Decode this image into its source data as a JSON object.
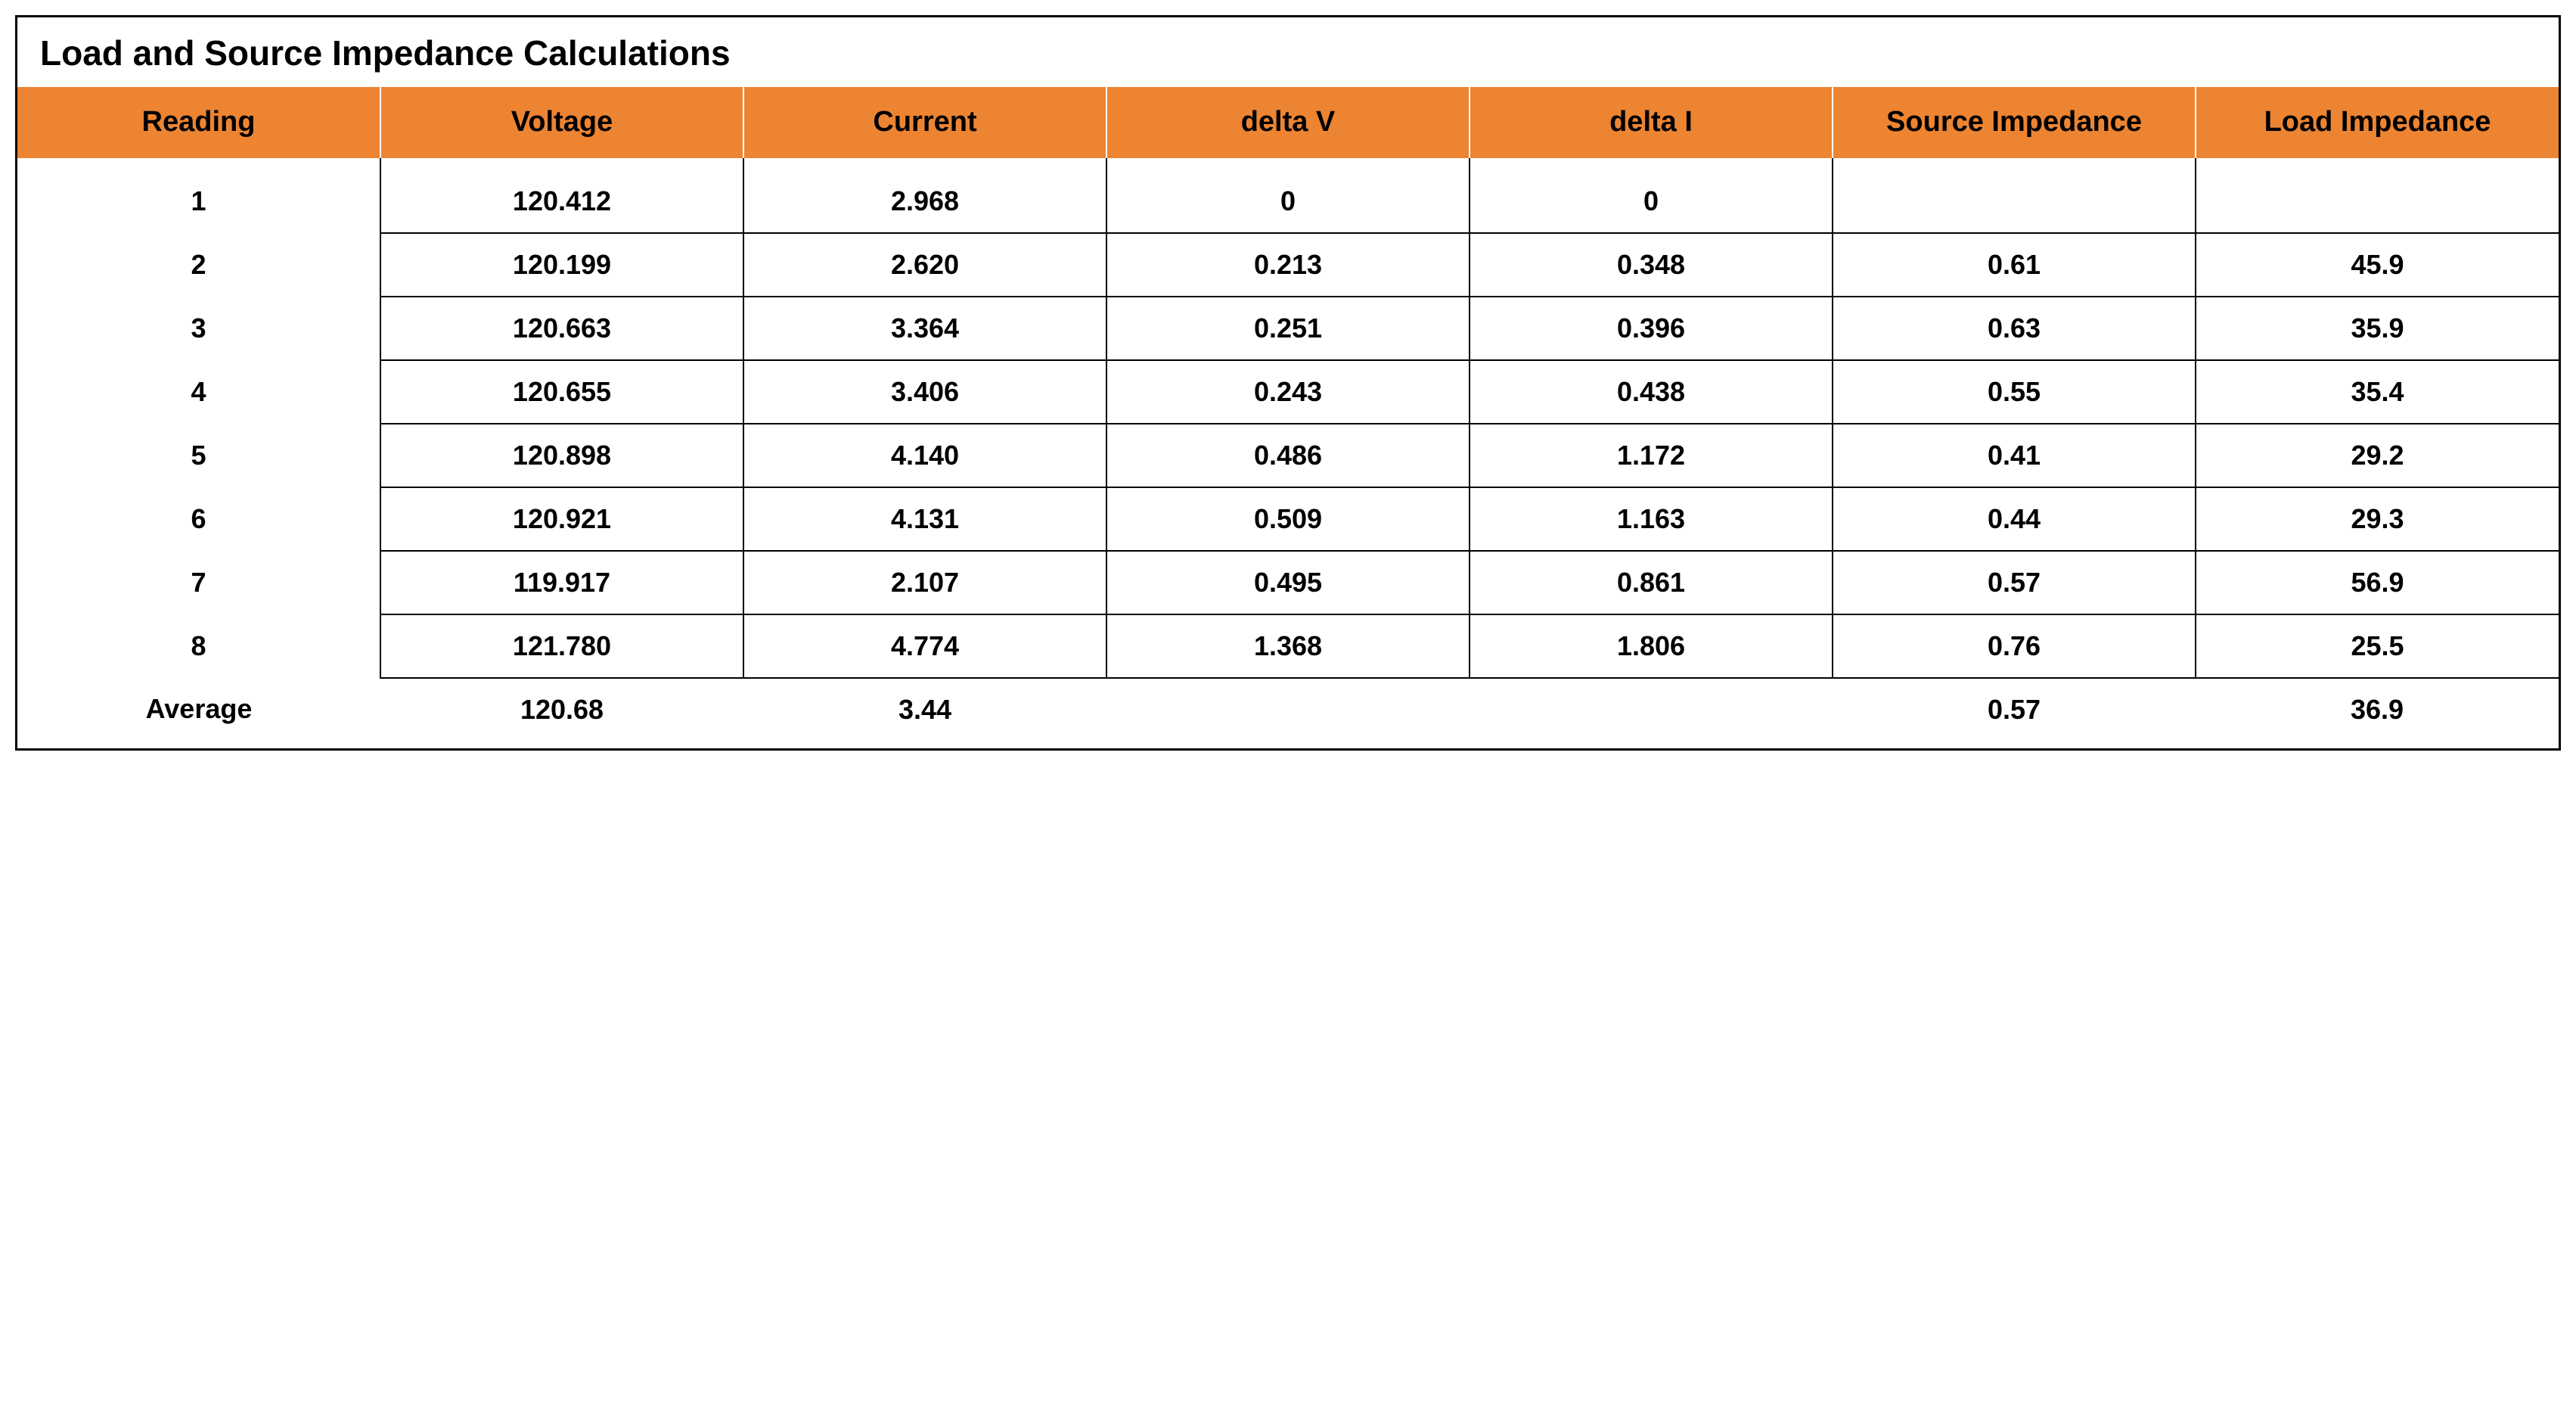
{
  "table": {
    "title": "Load and Source Impedance Calculations",
    "columns": [
      "Reading",
      "Voltage",
      "Current",
      "delta V",
      "delta I",
      "Source Impedance",
      "Load Impedance"
    ],
    "rows": [
      [
        "1",
        "120.412",
        "2.968",
        "0",
        "0",
        "",
        ""
      ],
      [
        "2",
        "120.199",
        "2.620",
        "0.213",
        "0.348",
        "0.61",
        "45.9"
      ],
      [
        "3",
        "120.663",
        "3.364",
        "0.251",
        "0.396",
        "0.63",
        "35.9"
      ],
      [
        "4",
        "120.655",
        "3.406",
        "0.243",
        "0.438",
        "0.55",
        "35.4"
      ],
      [
        "5",
        "120.898",
        "4.140",
        "0.486",
        "1.172",
        "0.41",
        "29.2"
      ],
      [
        "6",
        "120.921",
        "4.131",
        "0.509",
        "1.163",
        "0.44",
        "29.3"
      ],
      [
        "7",
        "119.917",
        "2.107",
        "0.495",
        "0.861",
        "0.57",
        "56.9"
      ],
      [
        "8",
        "121.780",
        "4.774",
        "1.368",
        "1.806",
        "0.76",
        "25.5"
      ]
    ],
    "average": [
      "Average",
      "120.68",
      "3.44",
      "",
      "",
      "0.57",
      "36.9"
    ],
    "header_bg": "#ed8432",
    "border_color": "#000000",
    "header_fontsize": 38,
    "body_fontsize": 36,
    "title_fontsize": 46
  }
}
